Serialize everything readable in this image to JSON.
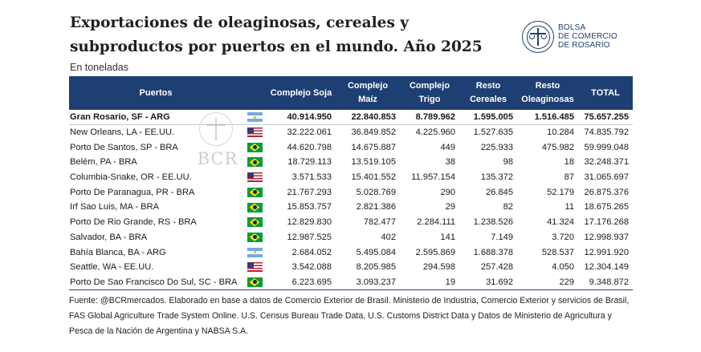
{
  "header": {
    "title": "Exportaciones de oleaginosas, cereales y subproductos por puertos en el mundo. Año 2025",
    "subtitle": "En toneladas"
  },
  "logo": {
    "line1": "BOLSA",
    "line2": "DE COMERCIO",
    "line3": "DE ROSARIO",
    "watermark_text": "BCR"
  },
  "table": {
    "columns": {
      "port": "Puertos",
      "soja": "Complejo Soja",
      "maiz": "Complejo Maíz",
      "trigo": "Complejo Trigo",
      "cereales": "Resto Cereales",
      "oleaginosas": "Resto Oleaginosas",
      "total": "TOTAL"
    },
    "rows": [
      {
        "port": "Gran Rosario, SF - ARG",
        "flag": "argentina-flag-icon",
        "soja": "40.914.950",
        "maiz": "22.840.853",
        "trigo": "8.789.962",
        "cereales": "1.595.005",
        "oleaginosas": "1.516.485",
        "total": "75.657.255"
      },
      {
        "port": "New Orleans,  LA - EE.UU.",
        "flag": "usa-flag-icon",
        "soja": "32.222.061",
        "maiz": "36.849.852",
        "trigo": "4.225.960",
        "cereales": "1.527.635",
        "oleaginosas": "10.284",
        "total": "74.835.792"
      },
      {
        "port": "Porto De Santos, SP - BRA",
        "flag": "brazil-flag-icon",
        "soja": "44.620.798",
        "maiz": "14.675.887",
        "trigo": "449",
        "cereales": "225.933",
        "oleaginosas": "475.982",
        "total": "59.999.048"
      },
      {
        "port": "Belém, PA - BRA",
        "flag": "brazil-flag-icon",
        "soja": "18.729.113",
        "maiz": "13.519.105",
        "trigo": "38",
        "cereales": "98",
        "oleaginosas": "18",
        "total": "32.248.371"
      },
      {
        "port": "Columbia-Snake,  OR - EE.UU.",
        "flag": "usa-flag-icon",
        "soja": "3.571.533",
        "maiz": "15.401.552",
        "trigo": "11.957.154",
        "cereales": "135.372",
        "oleaginosas": "87",
        "total": "31.065.697"
      },
      {
        "port": "Porto De Paranagua, PR - BRA",
        "flag": "brazil-flag-icon",
        "soja": "21.767.293",
        "maiz": "5.028.769",
        "trigo": "290",
        "cereales": "26.845",
        "oleaginosas": "52.179",
        "total": "26.875.376"
      },
      {
        "port": "Irf Sao Luis, MA - BRA",
        "flag": "brazil-flag-icon",
        "soja": "15.853.757",
        "maiz": "2.821.386",
        "trigo": "29",
        "cereales": "82",
        "oleaginosas": "11",
        "total": "18.675.265"
      },
      {
        "port": "Porto De Rio Grande, RS - BRA",
        "flag": "brazil-flag-icon",
        "soja": "12.829.830",
        "maiz": "782.477",
        "trigo": "2.284.111",
        "cereales": "1.238.526",
        "oleaginosas": "41.324",
        "total": "17.176.268"
      },
      {
        "port": "Salvador, BA - BRA",
        "flag": "brazil-flag-icon",
        "soja": "12.987.525",
        "maiz": "402",
        "trigo": "141",
        "cereales": "7.149",
        "oleaginosas": "3.720",
        "total": "12.998.937"
      },
      {
        "port": "Bahía Blanca, BA - ARG",
        "flag": "argentina-flag-icon",
        "soja": "2.684.052",
        "maiz": "5.495.084",
        "trigo": "2.595.869",
        "cereales": "1.688.378",
        "oleaginosas": "528.537",
        "total": "12.991.920"
      },
      {
        "port": "Seattle,  WA - EE.UU.",
        "flag": "usa-flag-icon",
        "soja": "3.542.088",
        "maiz": "8.205.985",
        "trigo": "294.598",
        "cereales": "257.428",
        "oleaginosas": "4.050",
        "total": "12.304.149"
      },
      {
        "port": "Porto De Sao Francisco Do Sul, SC - BRA",
        "flag": "brazil-flag-icon",
        "soja": "6.223.695",
        "maiz": "3.093.237",
        "trigo": "19",
        "cereales": "31.692",
        "oleaginosas": "229",
        "total": "9.348.872"
      }
    ]
  },
  "footer": {
    "source": "Fuente: @BCRmercados. Elaborado en base a datos de Comercio Exterior de Brasil. Ministerio de Industria, Comercio Exterior y servicios de Brasil, FAS Global Agriculture Trade System Online. U.S. Census Bureau Trade Data, U.S. Customs District Data y Datos de Ministerio de Agricultura y Pesca de la Nación de Argentina y NABSA S.A."
  },
  "colors": {
    "header_bg": "#1e3f73",
    "header_text": "#ffffff"
  }
}
